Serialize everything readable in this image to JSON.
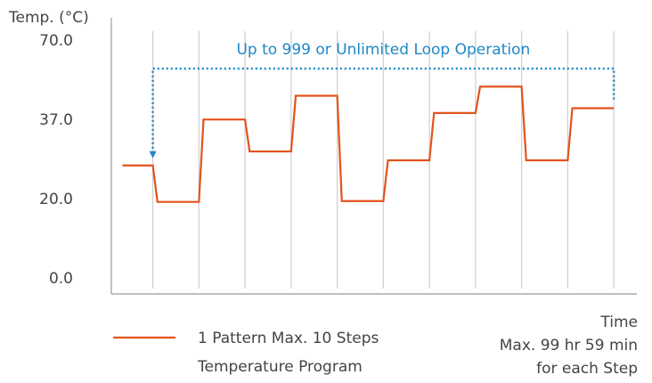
{
  "chart_data": {
    "type": "line",
    "y_label": "Temp. (°C)",
    "x_label": "Time",
    "x_label_notes": [
      "Max. 99 hr 59 min",
      "for each Step"
    ],
    "annotation": "Up to 999 or Unlimited Loop Operation",
    "annotation_color": "#1e88c8",
    "yticks": [
      {
        "value": 0,
        "label": "0.0"
      },
      {
        "value": 20,
        "label": "20.0"
      },
      {
        "value": 37,
        "label": "37.0"
      },
      {
        "value": 70,
        "label": "70.0"
      }
    ],
    "xlim": [
      -0.9,
      10.5
    ],
    "xticks": [
      0,
      1,
      2,
      3,
      4,
      5,
      6,
      7,
      8,
      9,
      10
    ],
    "grid": true,
    "legend_note": "Temperature Program",
    "series": [
      {
        "name": "1 Pattern Max. 10 Steps",
        "color": "#e2531d",
        "x": [
          -0.66,
          0,
          0.1,
          1,
          1.1,
          2,
          2.1,
          3,
          3.1,
          4,
          4.1,
          5,
          5.1,
          6,
          6.1,
          7,
          7.1,
          8,
          8.1,
          9,
          9.1,
          10
        ],
        "values": [
          27.3,
          27.3,
          19.4,
          19.4,
          37.3,
          37.3,
          30.3,
          30.3,
          47.2,
          47.2,
          19.6,
          19.6,
          28.4,
          28.4,
          40,
          40,
          51,
          51,
          28.4,
          28.4,
          42,
          42
        ]
      }
    ]
  }
}
